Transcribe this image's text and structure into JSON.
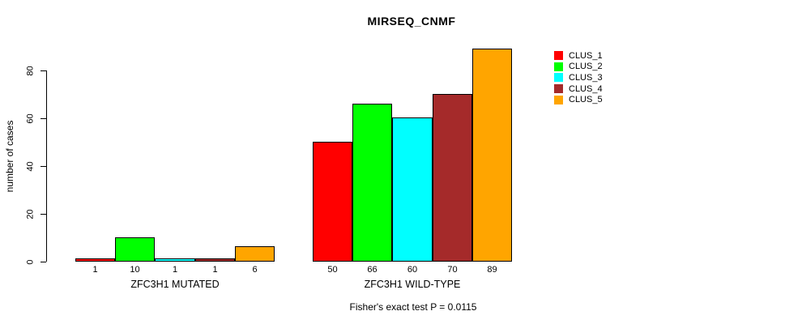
{
  "chart_data": {
    "type": "bar",
    "title": "MIRSEQ_CNMF",
    "ylabel": "number of cases",
    "ylim": [
      0,
      89
    ],
    "yticks": [
      0,
      20,
      40,
      60,
      80
    ],
    "grid": false,
    "categories": [
      "ZFC3H1 MUTATED",
      "ZFC3H1 WILD-TYPE"
    ],
    "groups": [
      {
        "label": "ZFC3H1 MUTATED",
        "values": [
          1,
          10,
          1,
          1,
          6
        ]
      },
      {
        "label": "ZFC3H1 WILD-TYPE",
        "values": [
          50,
          66,
          60,
          70,
          89
        ]
      }
    ],
    "series": [
      {
        "name": "CLUS_1",
        "color": "#FF0000",
        "values": [
          1,
          50
        ]
      },
      {
        "name": "CLUS_2",
        "color": "#00FF00",
        "values": [
          10,
          66
        ]
      },
      {
        "name": "CLUS_3",
        "color": "#00FFFF",
        "values": [
          1,
          60
        ]
      },
      {
        "name": "CLUS_4",
        "color": "#A52A2A",
        "values": [
          1,
          70
        ]
      },
      {
        "name": "CLUS_5",
        "color": "#FFA500",
        "values": [
          6,
          89
        ]
      }
    ],
    "legend": {
      "position": "right",
      "entries": [
        "CLUS_1",
        "CLUS_2",
        "CLUS_3",
        "CLUS_4",
        "CLUS_5"
      ]
    },
    "bar_border_color": "#000000",
    "footnote": "Fisher's exact test P = 0.0115"
  }
}
